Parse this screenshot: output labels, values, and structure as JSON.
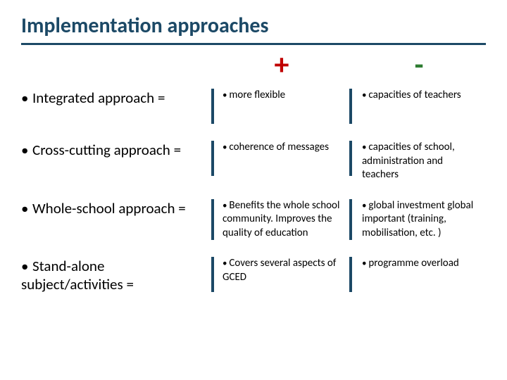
{
  "title": "Implementation approaches",
  "plus_sign": "+",
  "minus_sign": "-",
  "colors": {
    "title": "#1c4966",
    "rule": "#1c4966",
    "plus": "#c00000",
    "minus": "#2e7d32",
    "text": "#000000",
    "background": "#ffffff"
  },
  "rows": [
    {
      "approach": "Integrated approach =",
      "pro": "more flexible",
      "con": "capacities of teachers"
    },
    {
      "approach": "Cross-cutting approach =",
      "pro": "coherence of messages",
      "con": "capacities of school, administration and teachers"
    },
    {
      "approach": "Whole-school approach =",
      "pro": "Benefits the whole school community. Improves the quality of education",
      "con": "global investment global important (training, mobilisation, etc. )"
    },
    {
      "approach": "Stand-alone subject/activities =",
      "pro": "Covers several aspects of GCED",
      "con": "programme overload"
    }
  ]
}
